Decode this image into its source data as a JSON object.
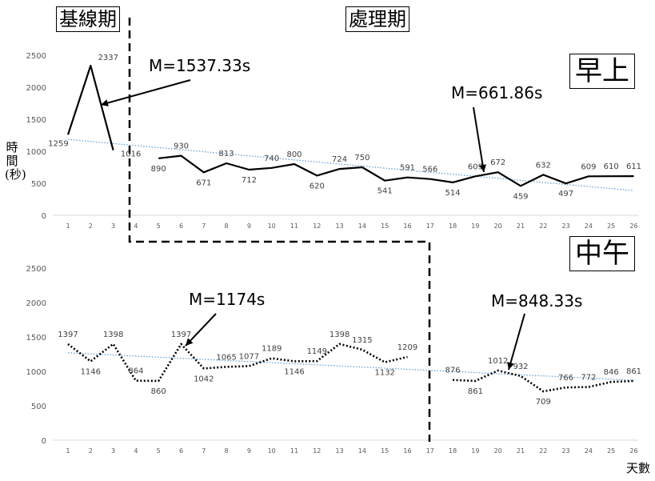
{
  "phases": {
    "baseline": "基線期",
    "treatment": "處理期"
  },
  "xlabel": "天數",
  "ylabel": "時間(秒)",
  "chart_data": [
    {
      "type": "line",
      "session": "早上",
      "x": [
        1,
        2,
        3,
        4,
        5,
        6,
        7,
        8,
        9,
        10,
        11,
        12,
        13,
        14,
        15,
        16,
        17,
        18,
        19,
        20,
        21,
        22,
        23,
        24,
        25,
        26
      ],
      "yticks": [
        0,
        500,
        1000,
        1500,
        2000,
        2500
      ],
      "ylim": [
        0,
        2500
      ],
      "line_style": "solid",
      "segments": [
        {
          "x": [
            1,
            2,
            3
          ],
          "values": [
            1259,
            2337,
            1016
          ]
        },
        {
          "x": [
            5,
            6,
            7,
            8,
            9,
            10,
            11,
            12,
            13,
            14,
            15,
            16,
            17,
            18,
            19,
            20,
            21,
            22,
            23,
            24,
            25,
            26
          ],
          "values": [
            890,
            930,
            671,
            813,
            712,
            740,
            800,
            620,
            724,
            750,
            541,
            591,
            566,
            514,
            609,
            672,
            459,
            632,
            497,
            609,
            610,
            611
          ]
        }
      ],
      "point_labels": [
        {
          "x": 1,
          "y": 1259,
          "text": "1259"
        },
        {
          "x": 2,
          "y": 2337,
          "text": "2337"
        },
        {
          "x": 3,
          "y": 1016,
          "text": "1016"
        },
        {
          "x": 5,
          "y": 890,
          "text": "890"
        },
        {
          "x": 6,
          "y": 930,
          "text": "930"
        },
        {
          "x": 7,
          "y": 671,
          "text": "671"
        },
        {
          "x": 8,
          "y": 813,
          "text": "813"
        },
        {
          "x": 9,
          "y": 712,
          "text": "712"
        },
        {
          "x": 10,
          "y": 740,
          "text": "740"
        },
        {
          "x": 11,
          "y": 800,
          "text": "800"
        },
        {
          "x": 12,
          "y": 620,
          "text": "620"
        },
        {
          "x": 13,
          "y": 724,
          "text": "724"
        },
        {
          "x": 14,
          "y": 750,
          "text": "750"
        },
        {
          "x": 15,
          "y": 541,
          "text": "541"
        },
        {
          "x": 16,
          "y": 591,
          "text": "591"
        },
        {
          "x": 17,
          "y": 566,
          "text": "566"
        },
        {
          "x": 18,
          "y": 514,
          "text": "514"
        },
        {
          "x": 19,
          "y": 609,
          "text": "609"
        },
        {
          "x": 20,
          "y": 672,
          "text": "672"
        },
        {
          "x": 21,
          "y": 459,
          "text": "459"
        },
        {
          "x": 22,
          "y": 632,
          "text": "632"
        },
        {
          "x": 23,
          "y": 497,
          "text": "497"
        },
        {
          "x": 24,
          "y": 609,
          "text": "609"
        },
        {
          "x": 25,
          "y": 610,
          "text": "610"
        },
        {
          "x": 26,
          "y": 611,
          "text": "611"
        }
      ],
      "trendline": {
        "style": "dotted",
        "color": "#5b9bd5",
        "x": [
          1,
          26
        ],
        "y": [
          1185,
          385
        ]
      },
      "annotations": [
        {
          "text": "M=1537.33s",
          "points_to": {
            "x": 2,
            "y": 1800
          }
        },
        {
          "text": "M=661.86s",
          "points_to": {
            "x": 19.3,
            "y": 640
          }
        }
      ]
    },
    {
      "type": "line",
      "session": "中午",
      "x": [
        1,
        2,
        3,
        4,
        5,
        6,
        7,
        8,
        9,
        10,
        11,
        12,
        13,
        14,
        15,
        16,
        17,
        18,
        19,
        20,
        21,
        22,
        23,
        24,
        25,
        26
      ],
      "yticks": [
        0,
        500,
        1000,
        1500,
        2000,
        2500
      ],
      "ylim": [
        0,
        2500
      ],
      "line_style": "dotted",
      "segments": [
        {
          "x": [
            1,
            2,
            3,
            4,
            5,
            6,
            7,
            8,
            9,
            10,
            11,
            12,
            13,
            14,
            15,
            16
          ],
          "values": [
            1397,
            1146,
            1398,
            864,
            860,
            1397,
            1042,
            1065,
            1077,
            1189,
            1146,
            1149,
            1398,
            1315,
            1132,
            1209
          ]
        },
        {
          "x": [
            18,
            19,
            20,
            21,
            22,
            23,
            24,
            25,
            26
          ],
          "values": [
            876,
            861,
            1012,
            932,
            709,
            766,
            772,
            846,
            861
          ]
        }
      ],
      "point_labels": [
        {
          "x": 1,
          "y": 1397,
          "text": "1397"
        },
        {
          "x": 2,
          "y": 1146,
          "text": "1146"
        },
        {
          "x": 3,
          "y": 1398,
          "text": "1398"
        },
        {
          "x": 4,
          "y": 864,
          "text": "864"
        },
        {
          "x": 5,
          "y": 860,
          "text": "860"
        },
        {
          "x": 6,
          "y": 1397,
          "text": "1397"
        },
        {
          "x": 7,
          "y": 1042,
          "text": "1042"
        },
        {
          "x": 8,
          "y": 1065,
          "text": "1065"
        },
        {
          "x": 9,
          "y": 1077,
          "text": "1077"
        },
        {
          "x": 10,
          "y": 1189,
          "text": "1189"
        },
        {
          "x": 11,
          "y": 1146,
          "text": "1146"
        },
        {
          "x": 12,
          "y": 1149,
          "text": "1149"
        },
        {
          "x": 13,
          "y": 1398,
          "text": "1398"
        },
        {
          "x": 14,
          "y": 1315,
          "text": "1315"
        },
        {
          "x": 15,
          "y": 1132,
          "text": "1132"
        },
        {
          "x": 16,
          "y": 1209,
          "text": "1209"
        },
        {
          "x": 18,
          "y": 876,
          "text": "876"
        },
        {
          "x": 19,
          "y": 861,
          "text": "861"
        },
        {
          "x": 20,
          "y": 1012,
          "text": "1012"
        },
        {
          "x": 21,
          "y": 932,
          "text": "932"
        },
        {
          "x": 22,
          "y": 709,
          "text": "709"
        },
        {
          "x": 23,
          "y": 766,
          "text": "766"
        },
        {
          "x": 24,
          "y": 772,
          "text": "772"
        },
        {
          "x": 25,
          "y": 846,
          "text": "846"
        },
        {
          "x": 26,
          "y": 861,
          "text": "861"
        }
      ],
      "trendline": {
        "style": "dotted",
        "color": "#5b9bd5",
        "x": [
          1,
          26
        ],
        "y": [
          1270,
          870
        ]
      },
      "annotations": [
        {
          "text": "M=1174s",
          "points_to": {
            "x": 6,
            "y": 1420
          }
        },
        {
          "text": "M=848.33s",
          "points_to": {
            "x": 20,
            "y": 1030
          }
        }
      ]
    }
  ]
}
